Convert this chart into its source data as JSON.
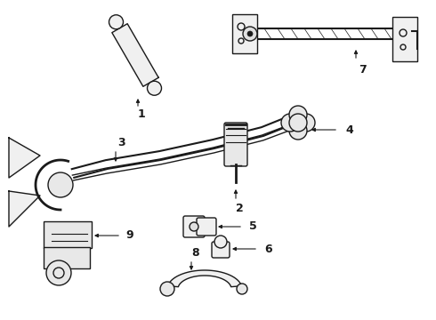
{
  "bg_color": "#ffffff",
  "line_color": "#1a1a1a",
  "label_color": "#000000",
  "figsize": [
    4.9,
    3.6
  ],
  "dpi": 100,
  "xlim": [
    0,
    490
  ],
  "ylim": [
    0,
    360
  ]
}
